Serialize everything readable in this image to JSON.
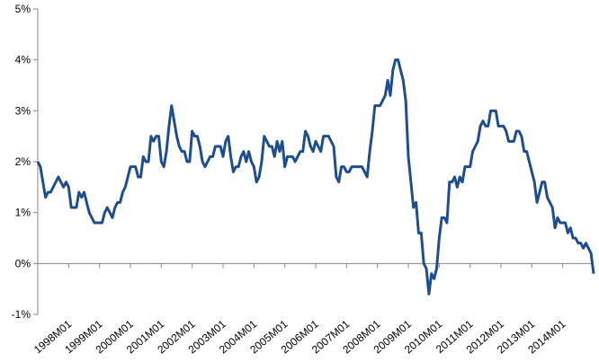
{
  "chart_data": {
    "type": "line",
    "categories": [
      null,
      null,
      null,
      null,
      null,
      null,
      null,
      null,
      null,
      null,
      null,
      null,
      "1998M01",
      null,
      null,
      null,
      null,
      null,
      null,
      null,
      null,
      null,
      null,
      null,
      "1999M01",
      null,
      null,
      null,
      null,
      null,
      null,
      null,
      null,
      null,
      null,
      null,
      "2000M01",
      null,
      null,
      null,
      null,
      null,
      null,
      null,
      null,
      null,
      null,
      null,
      "2001M01",
      null,
      null,
      null,
      null,
      null,
      null,
      null,
      null,
      null,
      null,
      null,
      "2002M01",
      null,
      null,
      null,
      null,
      null,
      null,
      null,
      null,
      null,
      null,
      null,
      "2003M01",
      null,
      null,
      null,
      null,
      null,
      null,
      null,
      null,
      null,
      null,
      null,
      "2004M01",
      null,
      null,
      null,
      null,
      null,
      null,
      null,
      null,
      null,
      null,
      null,
      "2005M01",
      null,
      null,
      null,
      null,
      null,
      null,
      null,
      null,
      null,
      null,
      null,
      "2006M01",
      null,
      null,
      null,
      null,
      null,
      null,
      null,
      null,
      null,
      null,
      null,
      "2007M01",
      null,
      null,
      null,
      null,
      null,
      null,
      null,
      null,
      null,
      null,
      null,
      "2008M01",
      null,
      null,
      null,
      null,
      null,
      null,
      null,
      null,
      null,
      null,
      null,
      "2009M01",
      null,
      null,
      null,
      null,
      null,
      null,
      null,
      null,
      null,
      null,
      null,
      "2010M01",
      null,
      null,
      null,
      null,
      null,
      null,
      null,
      null,
      null,
      null,
      null,
      "2011M01",
      null,
      null,
      null,
      null,
      null,
      null,
      null,
      null,
      null,
      null,
      null,
      "2012M01",
      null,
      null,
      null,
      null,
      null,
      null,
      null,
      null,
      null,
      null,
      null,
      "2013M01",
      null,
      null,
      null,
      null,
      null,
      null,
      null,
      null,
      null,
      null,
      null,
      "2014M01",
      null,
      null,
      null,
      null,
      null,
      null,
      null,
      null,
      null,
      null,
      null,
      null
    ],
    "series": [
      {
        "color": "#1f4e8c",
        "values": [
          2.0,
          1.9,
          1.6,
          1.3,
          1.4,
          1.4,
          1.5,
          1.6,
          1.7,
          1.6,
          1.5,
          1.6,
          1.5,
          1.1,
          1.1,
          1.1,
          1.4,
          1.3,
          1.4,
          1.2,
          1.0,
          0.9,
          0.8,
          0.8,
          0.8,
          0.8,
          1.0,
          1.1,
          1.0,
          0.9,
          1.1,
          1.2,
          1.2,
          1.4,
          1.5,
          1.7,
          1.9,
          1.9,
          1.9,
          1.7,
          1.7,
          2.1,
          2.0,
          2.0,
          2.5,
          2.4,
          2.5,
          2.5,
          2.0,
          1.9,
          2.2,
          2.7,
          3.1,
          2.8,
          2.5,
          2.3,
          2.2,
          2.2,
          2.0,
          2.0,
          2.6,
          2.5,
          2.5,
          2.3,
          2.0,
          1.9,
          2.0,
          2.1,
          2.1,
          2.3,
          2.3,
          2.3,
          2.1,
          2.4,
          2.5,
          2.1,
          1.8,
          1.9,
          1.9,
          2.1,
          2.2,
          2.0,
          2.2,
          2.0,
          1.9,
          1.6,
          1.7,
          2.0,
          2.5,
          2.4,
          2.3,
          2.3,
          2.1,
          2.4,
          2.2,
          2.4,
          1.9,
          2.1,
          2.1,
          2.1,
          2.0,
          2.1,
          2.2,
          2.2,
          2.6,
          2.5,
          2.3,
          2.2,
          2.4,
          2.3,
          2.2,
          2.5,
          2.5,
          2.5,
          2.4,
          2.3,
          1.7,
          1.6,
          1.9,
          1.9,
          1.8,
          1.8,
          1.9,
          1.9,
          1.9,
          1.9,
          1.9,
          1.8,
          1.7,
          2.2,
          2.6,
          3.1,
          3.1,
          3.1,
          3.2,
          3.3,
          3.6,
          3.3,
          3.8,
          4.0,
          4.0,
          3.8,
          3.6,
          3.2,
          2.1,
          1.6,
          1.1,
          1.2,
          0.6,
          0.6,
          0.0,
          -0.1,
          -0.6,
          -0.2,
          -0.3,
          -0.1,
          0.5,
          0.9,
          0.9,
          0.8,
          1.6,
          1.6,
          1.7,
          1.5,
          1.7,
          1.6,
          1.9,
          1.9,
          1.9,
          2.2,
          2.3,
          2.4,
          2.7,
          2.8,
          2.7,
          2.7,
          3.0,
          3.0,
          3.0,
          2.7,
          2.7,
          2.7,
          2.6,
          2.4,
          2.4,
          2.4,
          2.6,
          2.6,
          2.5,
          2.2,
          2.2,
          2.0,
          1.8,
          1.6,
          1.2,
          1.4,
          1.6,
          1.6,
          1.3,
          1.2,
          1.1,
          0.7,
          0.9,
          0.8,
          0.8,
          0.8,
          0.6,
          0.7,
          0.5,
          0.5,
          0.4,
          0.4,
          0.3,
          0.4,
          0.3,
          0.2,
          -0.2
        ]
      }
    ],
    "ylim": [
      -1,
      5
    ],
    "yticks": [
      {
        "value": -1,
        "label": "-1%"
      },
      {
        "value": 0,
        "label": "0%"
      },
      {
        "value": 1,
        "label": "1%"
      },
      {
        "value": 2,
        "label": "2%"
      },
      {
        "value": 3,
        "label": "3%"
      },
      {
        "value": 4,
        "label": "4%"
      },
      {
        "value": 5,
        "label": "5%"
      }
    ]
  }
}
